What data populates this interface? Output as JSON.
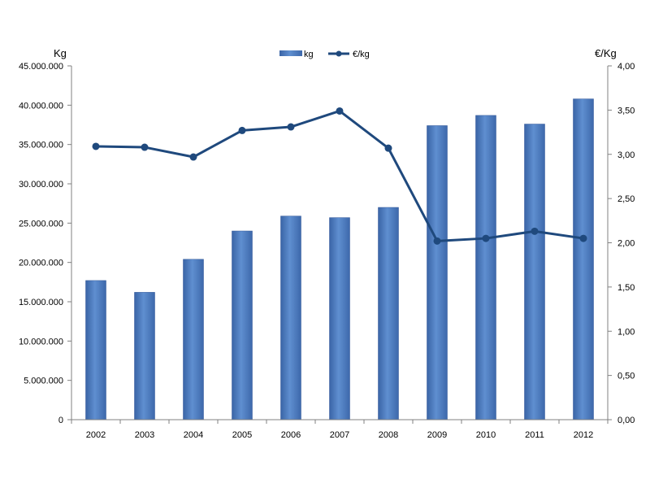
{
  "chart_data": {
    "type": "bar",
    "categories": [
      "2002",
      "2003",
      "2004",
      "2005",
      "2006",
      "2007",
      "2008",
      "2009",
      "2010",
      "2011",
      "2012"
    ],
    "y_left": {
      "label": "Kg",
      "min": 0,
      "max": 45000000,
      "ticks": [
        0,
        5000000,
        10000000,
        15000000,
        20000000,
        25000000,
        30000000,
        35000000,
        40000000,
        45000000
      ],
      "tick_labels": [
        "0",
        "5.000.000",
        "10.000.000",
        "15.000.000",
        "20.000.000",
        "25.000.000",
        "30.000.000",
        "35.000.000",
        "40.000.000",
        "45.000.000"
      ]
    },
    "y_right": {
      "label": "€/Kg",
      "min": 0,
      "max": 4,
      "ticks": [
        0,
        0.5,
        1,
        1.5,
        2,
        2.5,
        3,
        3.5,
        4
      ],
      "tick_labels": [
        "0,00",
        "0,50",
        "1,00",
        "1,50",
        "2,00",
        "2,50",
        "3,00",
        "3,50",
        "4,00"
      ]
    },
    "series": [
      {
        "name": "kg",
        "type": "bar",
        "axis": "left",
        "color": "#4f81bd",
        "values": [
          17700000,
          16200000,
          20400000,
          24000000,
          25900000,
          25700000,
          27000000,
          37400000,
          38700000,
          37600000,
          40800000
        ]
      },
      {
        "name": "€/kg",
        "type": "line",
        "axis": "right",
        "color": "#1f497d",
        "values": [
          3.09,
          3.08,
          2.97,
          3.27,
          3.31,
          3.49,
          3.07,
          2.02,
          2.05,
          2.13,
          2.05
        ]
      }
    ],
    "legend": "top-center",
    "grid": false
  }
}
